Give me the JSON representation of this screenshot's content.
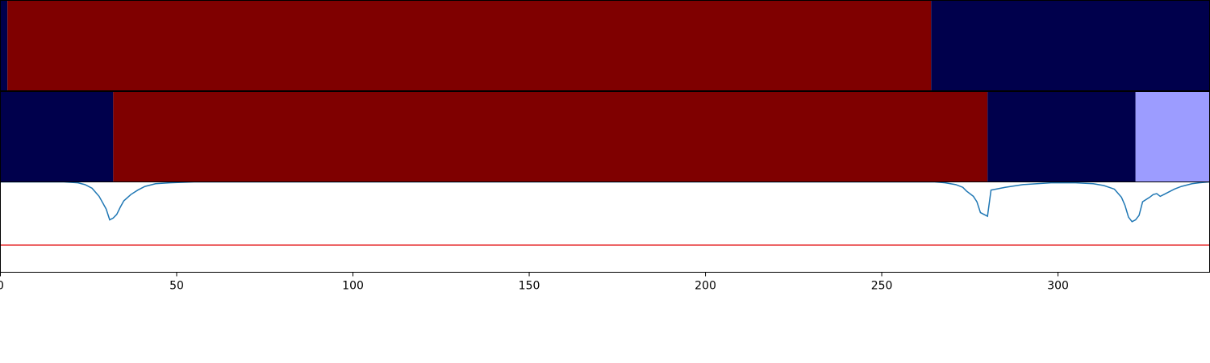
{
  "chart_data": [
    {
      "type": "heatmap",
      "xlim": [
        0,
        343
      ],
      "segments": [
        {
          "start": 0,
          "end": 2,
          "color": "#00004c"
        },
        {
          "start": 2,
          "end": 264,
          "color": "#7f0000"
        },
        {
          "start": 264,
          "end": 343,
          "color": "#00004c"
        }
      ]
    },
    {
      "type": "heatmap",
      "xlim": [
        0,
        343
      ],
      "segments": [
        {
          "start": 0,
          "end": 32,
          "color": "#00004c"
        },
        {
          "start": 32,
          "end": 280,
          "color": "#7f0000"
        },
        {
          "start": 280,
          "end": 322,
          "color": "#00004c"
        },
        {
          "start": 322,
          "end": 343,
          "color": "#9c9cff"
        }
      ]
    },
    {
      "type": "line",
      "xlim": [
        0,
        343
      ],
      "ylim": [
        0,
        1
      ],
      "series": [
        {
          "color": "#1f77b4",
          "points": [
            [
              0,
              1.0
            ],
            [
              18,
              1.0
            ],
            [
              22,
              0.99
            ],
            [
              24,
              0.97
            ],
            [
              26,
              0.93
            ],
            [
              28,
              0.84
            ],
            [
              30,
              0.7
            ],
            [
              31,
              0.58
            ],
            [
              32,
              0.6
            ],
            [
              33,
              0.64
            ],
            [
              34,
              0.72
            ],
            [
              35,
              0.79
            ],
            [
              37,
              0.86
            ],
            [
              39,
              0.91
            ],
            [
              41,
              0.95
            ],
            [
              44,
              0.98
            ],
            [
              48,
              0.99
            ],
            [
              55,
              1.0
            ],
            [
              265,
              1.0
            ],
            [
              268,
              0.99
            ],
            [
              271,
              0.97
            ],
            [
              273,
              0.94
            ],
            [
              274,
              0.9
            ],
            [
              276,
              0.84
            ],
            [
              277,
              0.78
            ],
            [
              278,
              0.66
            ],
            [
              280,
              0.62
            ],
            [
              281,
              0.91
            ],
            [
              285,
              0.94
            ],
            [
              290,
              0.97
            ],
            [
              298,
              0.99
            ],
            [
              305,
              0.99
            ],
            [
              310,
              0.98
            ],
            [
              313,
              0.96
            ],
            [
              316,
              0.92
            ],
            [
              318,
              0.83
            ],
            [
              319,
              0.74
            ],
            [
              320,
              0.61
            ],
            [
              321,
              0.56
            ],
            [
              322,
              0.58
            ],
            [
              323,
              0.63
            ],
            [
              324,
              0.78
            ],
            [
              326,
              0.83
            ],
            [
              327,
              0.86
            ],
            [
              328,
              0.87
            ],
            [
              329,
              0.84
            ],
            [
              330,
              0.86
            ],
            [
              333,
              0.92
            ],
            [
              335,
              0.95
            ],
            [
              338,
              0.98
            ],
            [
              340,
              0.99
            ],
            [
              343,
              1.0
            ]
          ]
        }
      ],
      "threshold": {
        "y": 0.3,
        "color": "#e41a1c"
      },
      "xticks": [
        0,
        50,
        100,
        150,
        200,
        250,
        300
      ]
    }
  ]
}
